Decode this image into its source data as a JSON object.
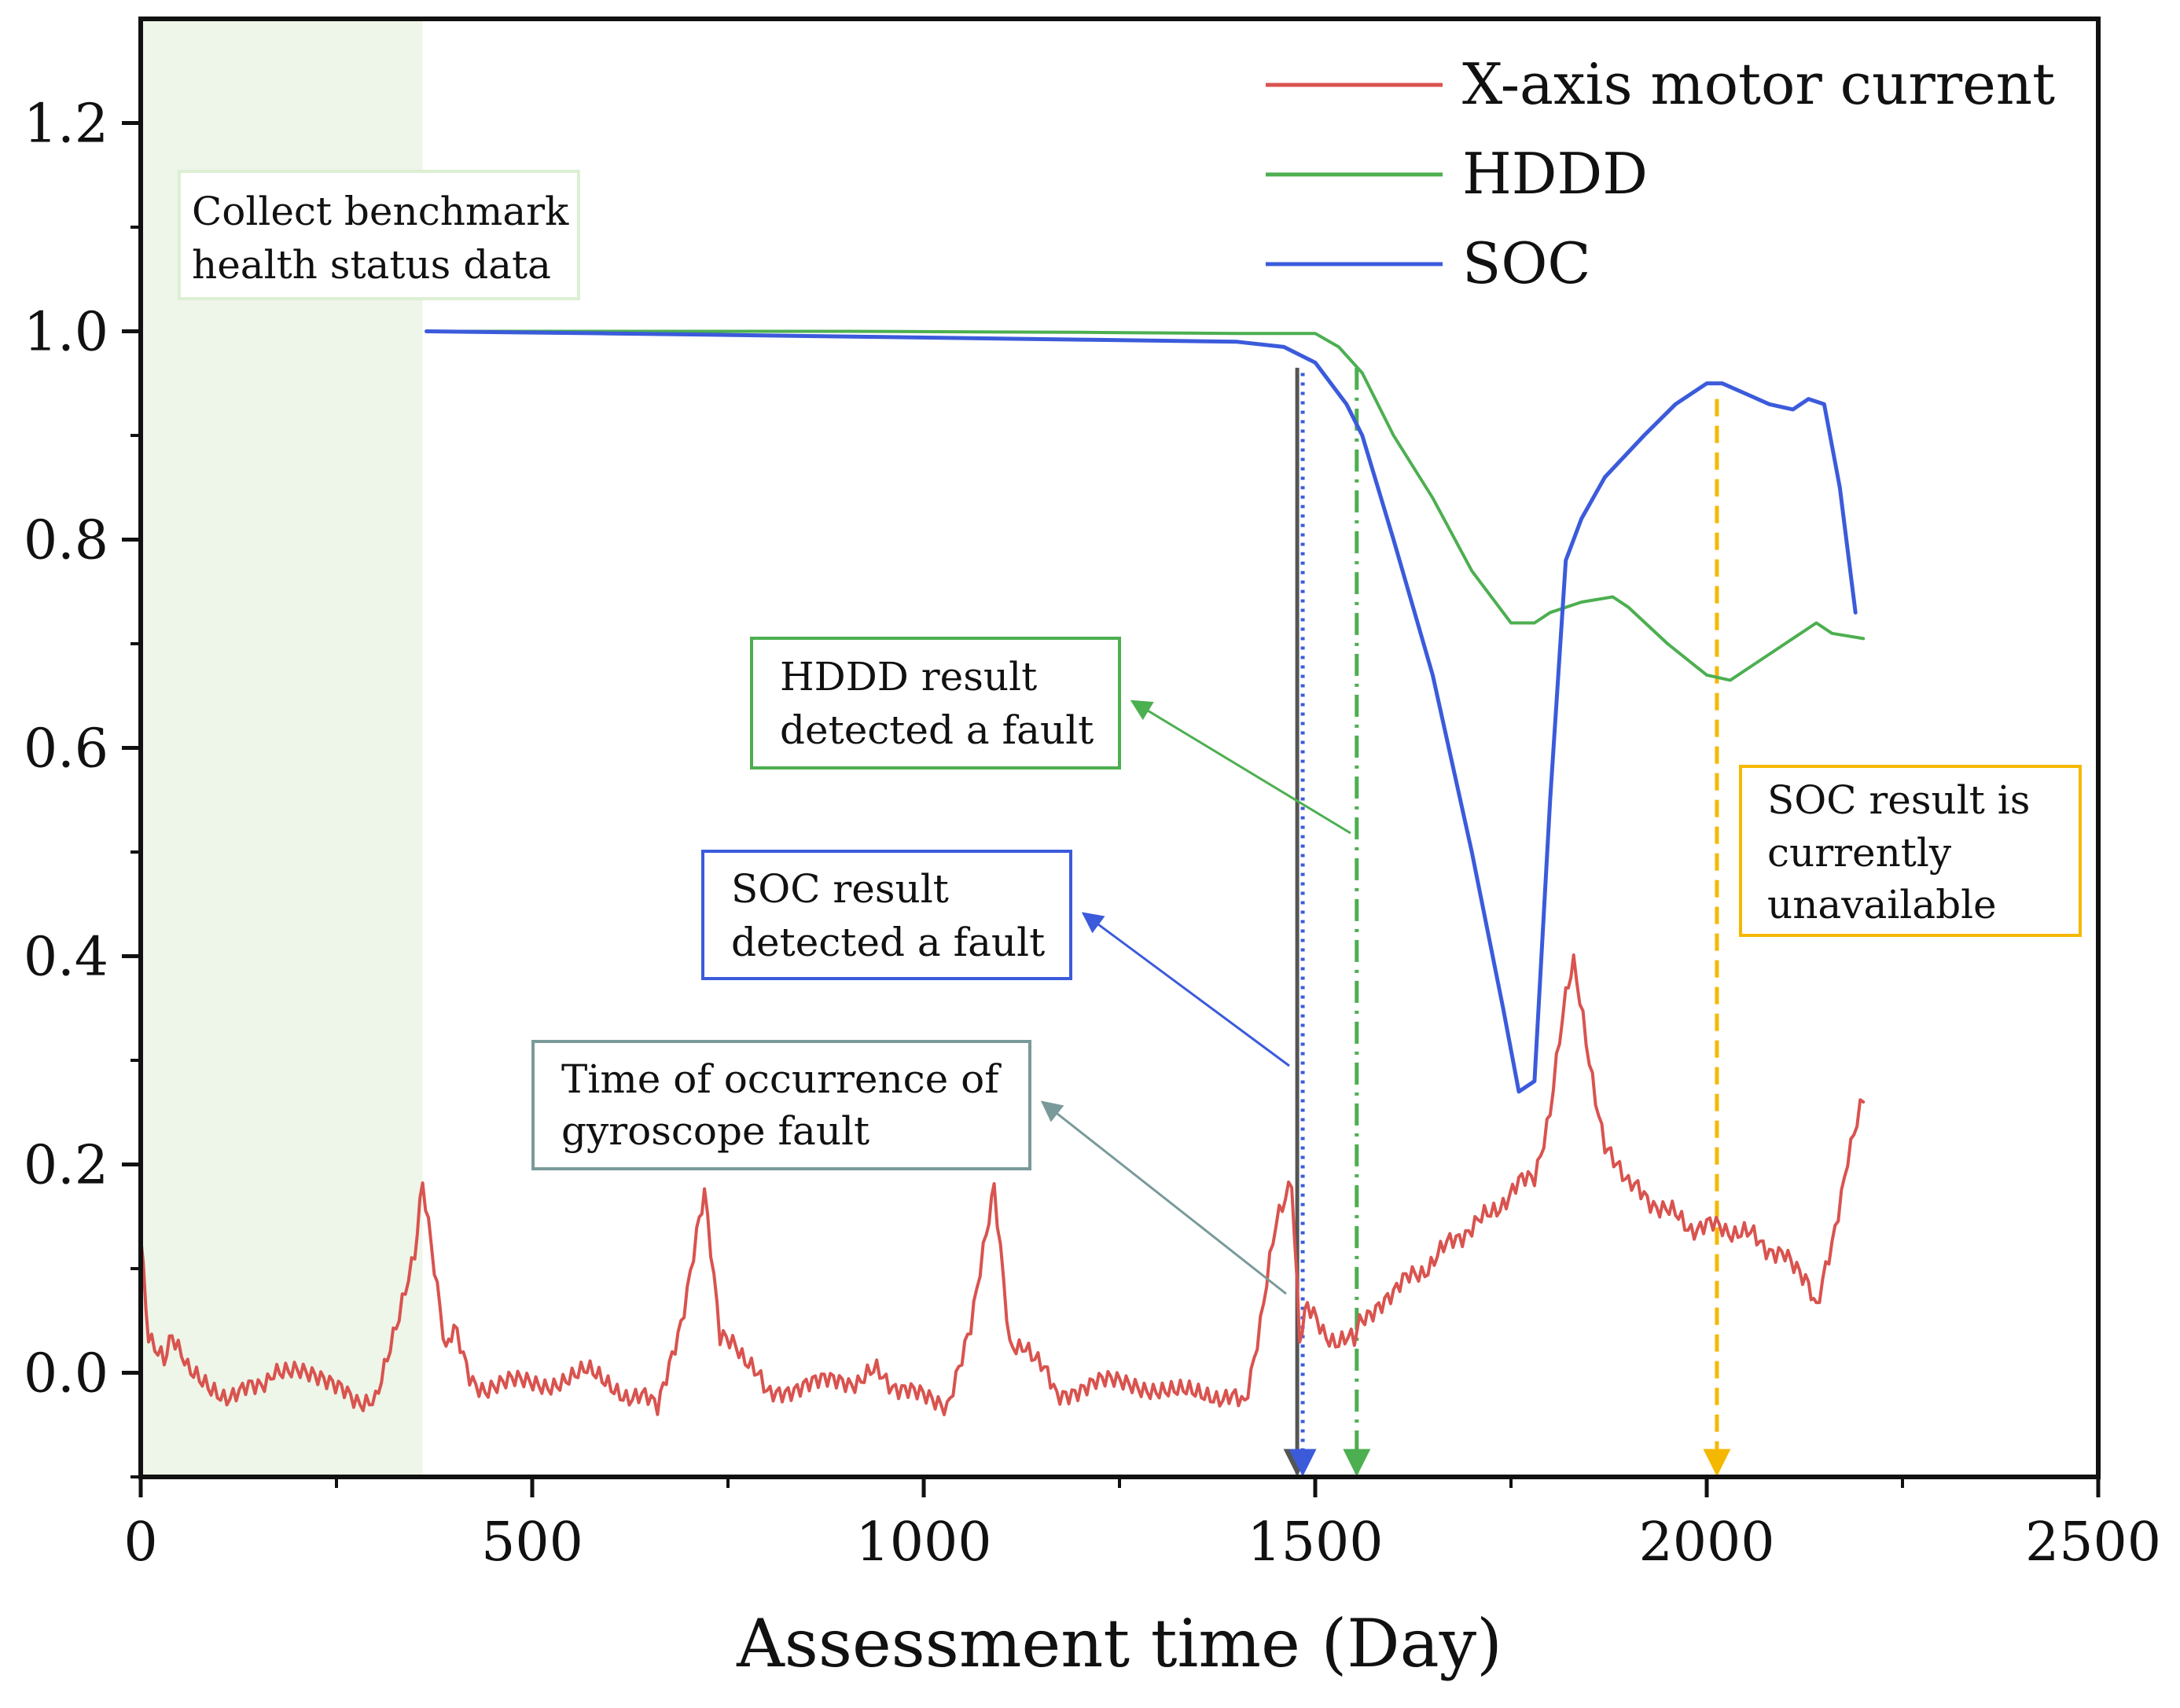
{
  "chart_data": {
    "type": "line",
    "title": "",
    "xlabel": "Assessment time (Day)",
    "ylabel": "",
    "xlim": [
      0,
      2500
    ],
    "ylim": [
      -0.1,
      1.3
    ],
    "xticks": [
      0,
      500,
      1000,
      1500,
      2000,
      2500
    ],
    "xtick_labels": [
      "0",
      "500",
      "1000",
      "1500",
      "2000",
      "2500"
    ],
    "yticks": [
      0.0,
      0.2,
      0.4,
      0.6,
      0.8,
      1.0,
      1.2
    ],
    "ytick_labels": [
      "0.0",
      "0.2",
      "0.4",
      "0.6",
      "0.8",
      "1.0",
      "1.2"
    ],
    "legend_position": "top-right",
    "series": [
      {
        "name": "X-axis motor current",
        "color": "#d9534f",
        "x": [
          0,
          10,
          30,
          40,
          60,
          90,
          130,
          170,
          200,
          230,
          260,
          300,
          330,
          350,
          360,
          390,
          400,
          420,
          440,
          470,
          520,
          570,
          620,
          660,
          690,
          710,
          720,
          740,
          760,
          800,
          850,
          900,
          940,
          980,
          1030,
          1060,
          1080,
          1090,
          1110,
          1130,
          1170,
          1220,
          1270,
          1320,
          1370,
          1410,
          1430,
          1450,
          1470,
          1480,
          1490,
          1510,
          1530,
          1550,
          1560,
          1570,
          1600,
          1640,
          1680,
          1720,
          1760,
          1780,
          1800,
          1820,
          1830,
          1850,
          1870,
          1900,
          1940,
          1980,
          2020,
          2060,
          2100,
          2130,
          2140,
          2160,
          2180,
          2200
        ],
        "y": [
          0.13,
          0.04,
          0.01,
          0.04,
          0.0,
          -0.02,
          -0.02,
          0.0,
          0.0,
          -0.01,
          -0.02,
          -0.03,
          0.05,
          0.12,
          0.18,
          0.02,
          0.04,
          0.0,
          -0.02,
          -0.01,
          -0.01,
          0.0,
          -0.02,
          -0.03,
          0.05,
          0.13,
          0.18,
          0.03,
          0.03,
          -0.02,
          -0.01,
          -0.01,
          0.0,
          -0.02,
          -0.03,
          0.05,
          0.13,
          0.18,
          0.02,
          0.03,
          -0.02,
          -0.01,
          -0.01,
          -0.02,
          -0.02,
          -0.03,
          0.05,
          0.14,
          0.19,
          0.03,
          0.06,
          0.04,
          0.03,
          0.03,
          0.05,
          0.06,
          0.08,
          0.1,
          0.13,
          0.15,
          0.18,
          0.19,
          0.25,
          0.36,
          0.39,
          0.3,
          0.22,
          0.18,
          0.16,
          0.14,
          0.14,
          0.13,
          0.11,
          0.08,
          0.06,
          0.12,
          0.21,
          0.26
        ]
      },
      {
        "name": "HDDD",
        "color": "#4caf50",
        "x": [
          365,
          600,
          900,
          1200,
          1400,
          1500,
          1530,
          1560,
          1600,
          1650,
          1700,
          1750,
          1780,
          1800,
          1840,
          1880,
          1900,
          1950,
          2000,
          2030,
          2060,
          2100,
          2140,
          2160,
          2200
        ],
        "y": [
          1.0,
          1.0,
          1.0,
          0.999,
          0.998,
          0.998,
          0.985,
          0.96,
          0.9,
          0.84,
          0.77,
          0.72,
          0.72,
          0.73,
          0.74,
          0.745,
          0.735,
          0.7,
          0.67,
          0.665,
          0.68,
          0.7,
          0.72,
          0.71,
          0.705
        ],
        "dashed": false
      },
      {
        "name": "SOC",
        "color": "#3b5bdb",
        "x": [
          365,
          600,
          900,
          1200,
          1400,
          1460,
          1500,
          1540,
          1560,
          1600,
          1650,
          1700,
          1740,
          1760,
          1780,
          1800,
          1820,
          1840,
          1870,
          1920,
          1960,
          2000,
          2020,
          2050,
          2080,
          2110,
          2130,
          2150,
          2170,
          2190
        ],
        "y": [
          1.0,
          0.998,
          0.995,
          0.992,
          0.99,
          0.985,
          0.97,
          0.93,
          0.9,
          0.8,
          0.67,
          0.5,
          0.35,
          0.27,
          0.28,
          0.55,
          0.78,
          0.82,
          0.86,
          0.9,
          0.93,
          0.95,
          0.95,
          0.94,
          0.93,
          0.925,
          0.935,
          0.93,
          0.85,
          0.73
        ]
      }
    ],
    "vertical_lines": [
      {
        "name": "Gyroscope fault occurrence",
        "x": 1477,
        "color": "#555555",
        "style": "solid"
      },
      {
        "name": "SOC fault detection",
        "x": 1484,
        "color": "#3b5bdb",
        "style": "dotted"
      },
      {
        "name": "HDDD fault detection",
        "x": 1553,
        "color": "#4caf50",
        "style": "dashdot"
      },
      {
        "name": "SOC unavailable",
        "x": 2013,
        "color": "#f5b800",
        "style": "dashed"
      }
    ],
    "shaded_region": {
      "x_start": 0,
      "x_end": 360,
      "color": "#eef5e9"
    },
    "annotations": [
      {
        "id": "benchmark",
        "lines": [
          "Collect benchmark",
          "health status data"
        ],
        "border": "#dcefd3"
      },
      {
        "id": "hddd",
        "lines": [
          "HDDD result",
          "detected a fault"
        ],
        "border": "#4caf50"
      },
      {
        "id": "soc",
        "lines": [
          "SOC result",
          "detected a fault"
        ],
        "border": "#3b5bdb"
      },
      {
        "id": "gyro",
        "lines": [
          "Time of occurrence of",
          "gyroscope fault"
        ],
        "border": "#7a9a9a"
      },
      {
        "id": "unavailable",
        "lines": [
          "SOC result is",
          "currently",
          "unavailable"
        ],
        "border": "#f5b800"
      }
    ]
  }
}
